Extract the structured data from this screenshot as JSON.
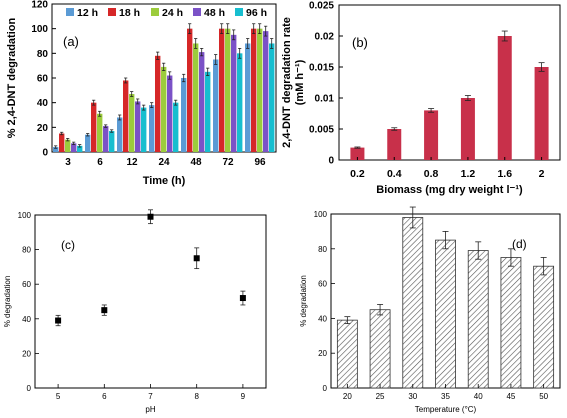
{
  "chart_data": [
    {
      "panel_label": "(a)",
      "type": "bar",
      "xlabel": "Time (h)",
      "ylabel": "% 2,4-DNT degradation",
      "ylim": [
        0,
        120
      ],
      "yticks": [
        0,
        20,
        40,
        60,
        80,
        100,
        120
      ],
      "categories": [
        "3",
        "6",
        "12",
        "24",
        "48",
        "72",
        "96"
      ],
      "series": [
        {
          "name": "12 h",
          "color": "#5b9bd5",
          "values": [
            4,
            14,
            28,
            38,
            60,
            75,
            88
          ],
          "errors": [
            1,
            1,
            2,
            2,
            3,
            4,
            4
          ]
        },
        {
          "name": "18 h",
          "color": "#d62728",
          "values": [
            15,
            40,
            58,
            78,
            100,
            100,
            100
          ],
          "errors": [
            1,
            2,
            2,
            3,
            4,
            4,
            4
          ]
        },
        {
          "name": "24 h",
          "color": "#9ccc3c",
          "values": [
            10,
            31,
            47,
            69,
            88,
            100,
            100
          ],
          "errors": [
            1,
            2,
            2,
            3,
            4,
            4,
            4
          ]
        },
        {
          "name": "48 h",
          "color": "#7b52c7",
          "values": [
            7,
            21,
            41,
            62,
            81,
            95,
            98
          ],
          "errors": [
            1,
            1,
            2,
            3,
            3,
            4,
            4
          ]
        },
        {
          "name": "96 h",
          "color": "#17becf",
          "values": [
            5,
            17,
            36,
            40,
            65,
            80,
            88
          ],
          "errors": [
            1,
            1,
            2,
            2,
            3,
            4,
            4
          ]
        }
      ],
      "legend": "top"
    },
    {
      "panel_label": "(b)",
      "type": "bar",
      "xlabel": "Biomass (mg dry weight l⁻¹)",
      "ylabel": "2,4-DNT degradation rate",
      "ylabel_unit": "(mM h⁻¹)",
      "ylim": [
        0,
        0.025
      ],
      "yticks": [
        "0",
        "0.005",
        "0.01",
        "0.015",
        "0.02",
        "0.025"
      ],
      "color": "#c8304a",
      "categories": [
        "0.2",
        "0.4",
        "0.8",
        "1.2",
        "1.6",
        "2"
      ],
      "values": [
        0.002,
        0.005,
        0.008,
        0.01,
        0.02,
        0.015
      ],
      "errors": [
        0.0001,
        0.0002,
        0.0003,
        0.0004,
        0.0008,
        0.0007
      ]
    },
    {
      "panel_label": "(c)",
      "type": "scatter",
      "xlabel": "pH",
      "ylabel": "% degradation",
      "xlim": [
        4.5,
        9.5
      ],
      "xticks": [
        "5",
        "6",
        "7",
        "8",
        "9"
      ],
      "ylim": [
        0,
        100
      ],
      "yticks": [
        "0",
        "20",
        "40",
        "60",
        "80",
        "100"
      ],
      "x": [
        5,
        6,
        7,
        8,
        9
      ],
      "y": [
        39,
        45,
        99,
        75,
        52
      ],
      "errors": [
        3,
        3,
        4,
        6,
        4
      ]
    },
    {
      "panel_label": "(d)",
      "type": "bar",
      "xlabel": "Temperature (°C)",
      "ylabel": "% degradation",
      "ylim": [
        0,
        100
      ],
      "yticks": [
        "0",
        "20",
        "40",
        "60",
        "80",
        "100"
      ],
      "categories": [
        "20",
        "25",
        "30",
        "35",
        "40",
        "45",
        "50"
      ],
      "values": [
        39,
        45,
        98,
        85,
        79,
        75,
        70
      ],
      "errors": [
        2,
        3,
        6,
        5,
        5,
        5,
        5
      ],
      "fill": "hatched"
    }
  ]
}
